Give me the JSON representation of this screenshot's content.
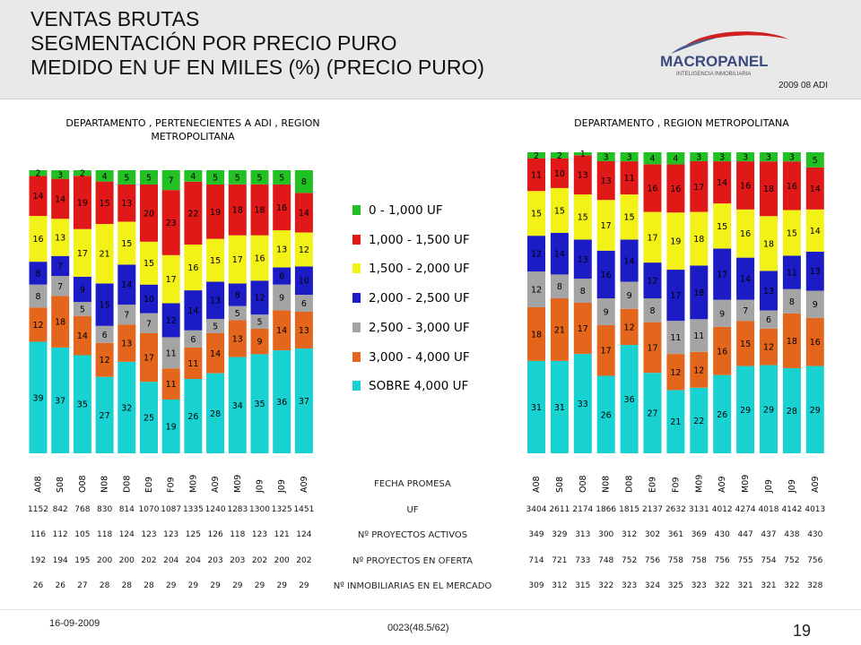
{
  "header": {
    "title_lines": [
      "VENTAS BRUTAS",
      "SEGMENTACIÓN POR PRECIO PURO",
      "MEDIDO EN UF EN MILES (%) (PRECIO PURO)"
    ],
    "logo_text": "MACROPANEL",
    "logo_subtext": "INTELIGENCIA INMOBILIARIA",
    "code": "2009 08 ADI"
  },
  "legend": {
    "segments": [
      {
        "label": "0 - 1,000 UF",
        "color": "#22c022"
      },
      {
        "label": "1,000 - 1,500 UF",
        "color": "#e01818"
      },
      {
        "label": "1,500 - 2,000 UF",
        "color": "#f2f218"
      },
      {
        "label": "2,000 - 2,500 UF",
        "color": "#1c1cc6"
      },
      {
        "label": "2,500 - 3,000 UF",
        "color": "#a4a4a4"
      },
      {
        "label": "3,000 - 4,000 UF",
        "color": "#e4661c"
      },
      {
        "label": "SOBRE 4,000 UF",
        "color": "#18d2d2"
      }
    ]
  },
  "row_labels": {
    "date": "FECHA PROMESA",
    "uf": "UF",
    "active": "Nº PROYECTOS ACTIVOS",
    "offer": "Nº PROYECTOS EN OFERTA",
    "realtors": "Nº INMOBILIARIAS EN EL MERCADO"
  },
  "chart_data": [
    {
      "type": "bar",
      "stacked": true,
      "title": "DEPARTAMENTO , PERTENECIENTES A ADI , REGION METROPOLITANA",
      "categories": [
        "A08",
        "S08",
        "O08",
        "N08",
        "D08",
        "E09",
        "F09",
        "M09",
        "A09",
        "M09",
        "J09",
        "J09",
        "A09"
      ],
      "series": [
        {
          "name": "SOBRE 4,000 UF",
          "values": [
            39,
            37,
            35,
            27,
            32,
            25,
            19,
            26,
            28,
            34,
            35,
            36,
            37
          ]
        },
        {
          "name": "3,000 - 4,000 UF",
          "values": [
            12,
            18,
            14,
            12,
            13,
            17,
            11,
            11,
            14,
            13,
            9,
            14,
            13
          ]
        },
        {
          "name": "2,500 - 3,000 UF",
          "values": [
            8,
            7,
            5,
            6,
            7,
            7,
            11,
            6,
            5,
            5,
            5,
            9,
            6
          ]
        },
        {
          "name": "2,000 - 2,500 UF",
          "values": [
            8,
            7,
            9,
            15,
            14,
            10,
            12,
            14,
            13,
            8,
            12,
            6,
            10
          ]
        },
        {
          "name": "1,500 - 2,000 UF",
          "values": [
            16,
            13,
            17,
            21,
            15,
            15,
            17,
            16,
            15,
            17,
            16,
            13,
            12
          ]
        },
        {
          "name": "1,000 - 1,500 UF",
          "values": [
            14,
            14,
            19,
            15,
            13,
            20,
            23,
            22,
            19,
            18,
            18,
            16,
            14
          ]
        },
        {
          "name": "0 - 1,000 UF",
          "values": [
            2,
            3,
            2,
            4,
            5,
            5,
            7,
            4,
            5,
            5,
            5,
            5,
            8
          ]
        }
      ],
      "table": {
        "uf": [
          "1152",
          "842",
          "768",
          "830",
          "814",
          "1070",
          "1087",
          "1335",
          "1240",
          "1283",
          "1300",
          "1325",
          "1451"
        ],
        "active": [
          "116",
          "112",
          "105",
          "118",
          "124",
          "123",
          "123",
          "125",
          "126",
          "118",
          "123",
          "121",
          "124"
        ],
        "offer": [
          "192",
          "194",
          "195",
          "200",
          "200",
          "202",
          "204",
          "204",
          "203",
          "203",
          "202",
          "200",
          "202"
        ],
        "realtors": [
          "26",
          "26",
          "27",
          "28",
          "28",
          "28",
          "29",
          "29",
          "29",
          "29",
          "29",
          "29",
          "29"
        ]
      }
    },
    {
      "type": "bar",
      "stacked": true,
      "title": "DEPARTAMENTO , REGION METROPOLITANA",
      "categories": [
        "A08",
        "S08",
        "O08",
        "N08",
        "D08",
        "E09",
        "F09",
        "M09",
        "A09",
        "M09",
        "J09",
        "J09",
        "A09"
      ],
      "series": [
        {
          "name": "SOBRE 4,000 UF",
          "values": [
            31,
            31,
            33,
            26,
            36,
            27,
            21,
            22,
            26,
            29,
            29,
            28,
            29
          ]
        },
        {
          "name": "3,000 - 4,000 UF",
          "values": [
            18,
            21,
            17,
            17,
            12,
            17,
            12,
            12,
            16,
            15,
            12,
            18,
            16
          ]
        },
        {
          "name": "2,500 - 3,000 UF",
          "values": [
            12,
            8,
            8,
            9,
            9,
            8,
            11,
            11,
            9,
            7,
            6,
            8,
            9
          ]
        },
        {
          "name": "2,000 - 2,500 UF",
          "values": [
            12,
            14,
            13,
            16,
            14,
            12,
            17,
            18,
            17,
            14,
            13,
            11,
            13
          ]
        },
        {
          "name": "1,500 - 2,000 UF",
          "values": [
            15,
            15,
            15,
            17,
            15,
            17,
            19,
            18,
            15,
            16,
            18,
            15,
            14
          ]
        },
        {
          "name": "1,000 - 1,500 UF",
          "values": [
            11,
            10,
            13,
            13,
            11,
            16,
            16,
            17,
            14,
            16,
            18,
            16,
            14
          ]
        },
        {
          "name": "0 - 1,000 UF",
          "values": [
            2,
            2,
            1,
            3,
            3,
            4,
            4,
            3,
            3,
            3,
            3,
            3,
            5
          ]
        }
      ],
      "table": {
        "uf": [
          "3404",
          "2611",
          "2174",
          "1866",
          "1815",
          "2137",
          "2632",
          "3131",
          "4012",
          "4274",
          "4018",
          "4142",
          "4013"
        ],
        "active": [
          "349",
          "329",
          "313",
          "300",
          "312",
          "302",
          "361",
          "369",
          "430",
          "447",
          "437",
          "438",
          "430"
        ],
        "offer": [
          "714",
          "721",
          "733",
          "748",
          "752",
          "756",
          "758",
          "758",
          "756",
          "755",
          "754",
          "752",
          "756"
        ],
        "realtors": [
          "309",
          "312",
          "315",
          "322",
          "323",
          "324",
          "325",
          "323",
          "322",
          "321",
          "321",
          "322",
          "328"
        ]
      }
    }
  ],
  "footer": {
    "date": "16-09-2009",
    "code": "0023(48.5/62)",
    "page": "19"
  }
}
